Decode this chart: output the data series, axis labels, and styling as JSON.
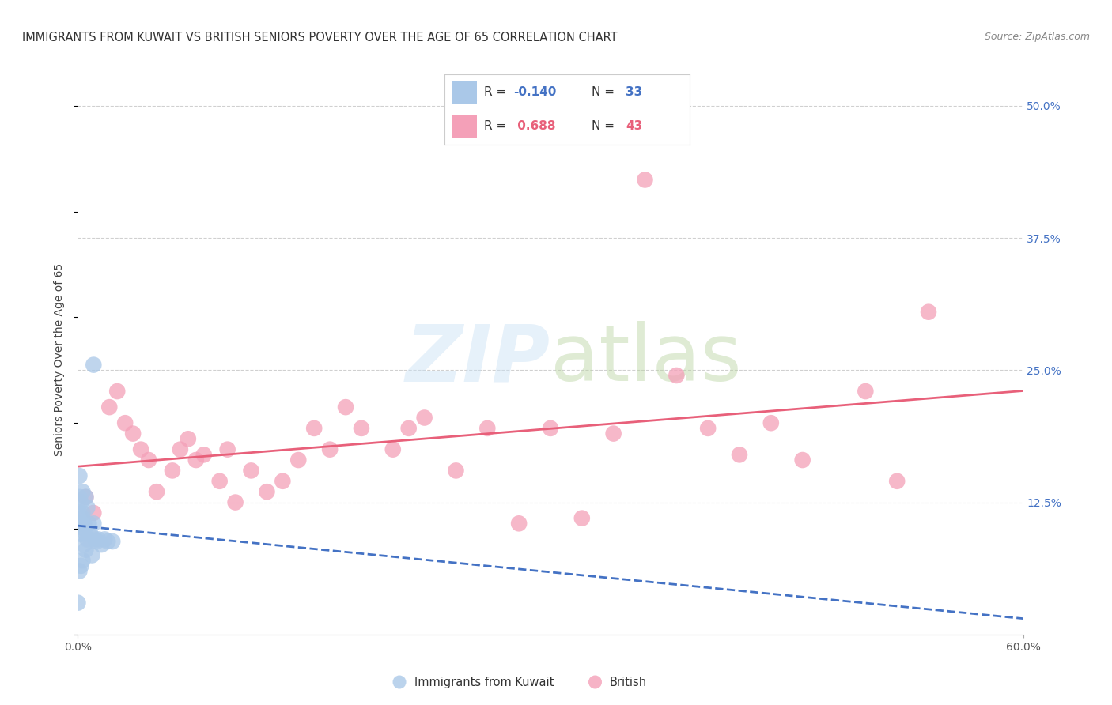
{
  "title": "IMMIGRANTS FROM KUWAIT VS BRITISH SENIORS POVERTY OVER THE AGE OF 65 CORRELATION CHART",
  "source": "Source: ZipAtlas.com",
  "ylabel": "Seniors Poverty Over the Age of 65",
  "xlim": [
    0.0,
    0.6
  ],
  "ylim": [
    0.0,
    0.52
  ],
  "ytick_positions": [
    0.0,
    0.125,
    0.25,
    0.375,
    0.5
  ],
  "yticklabels_right": [
    "",
    "12.5%",
    "25.0%",
    "37.5%",
    "50.0%"
  ],
  "grid_color": "#d0d0d0",
  "background_color": "#ffffff",
  "kuwait_color": "#aac8e8",
  "british_color": "#f4a0b8",
  "kuwait_line_color": "#4472c4",
  "british_line_color": "#e8607a",
  "kuwait_R": -0.14,
  "kuwait_N": 33,
  "british_R": 0.688,
  "british_N": 43,
  "kuwait_x": [
    0.0,
    0.001,
    0.001,
    0.002,
    0.002,
    0.003,
    0.003,
    0.004,
    0.004,
    0.005,
    0.005,
    0.006,
    0.007,
    0.008,
    0.009,
    0.01,
    0.011,
    0.012,
    0.013,
    0.015,
    0.017,
    0.019,
    0.022,
    0.001,
    0.002,
    0.003,
    0.004,
    0.005,
    0.006,
    0.001,
    0.002,
    0.003,
    0.01
  ],
  "kuwait_y": [
    0.03,
    0.15,
    0.13,
    0.125,
    0.105,
    0.135,
    0.11,
    0.105,
    0.085,
    0.13,
    0.08,
    0.12,
    0.105,
    0.095,
    0.075,
    0.105,
    0.09,
    0.088,
    0.09,
    0.085,
    0.09,
    0.088,
    0.088,
    0.115,
    0.095,
    0.115,
    0.1,
    0.095,
    0.09,
    0.06,
    0.065,
    0.07,
    0.255
  ],
  "british_x": [
    0.005,
    0.01,
    0.02,
    0.025,
    0.03,
    0.035,
    0.04,
    0.045,
    0.05,
    0.06,
    0.065,
    0.07,
    0.075,
    0.08,
    0.09,
    0.095,
    0.1,
    0.11,
    0.12,
    0.13,
    0.14,
    0.15,
    0.16,
    0.17,
    0.18,
    0.2,
    0.21,
    0.22,
    0.24,
    0.26,
    0.28,
    0.3,
    0.32,
    0.34,
    0.36,
    0.38,
    0.4,
    0.42,
    0.44,
    0.46,
    0.5,
    0.52,
    0.54
  ],
  "british_y": [
    0.13,
    0.115,
    0.215,
    0.23,
    0.2,
    0.19,
    0.175,
    0.165,
    0.135,
    0.155,
    0.175,
    0.185,
    0.165,
    0.17,
    0.145,
    0.175,
    0.125,
    0.155,
    0.135,
    0.145,
    0.165,
    0.195,
    0.175,
    0.215,
    0.195,
    0.175,
    0.195,
    0.205,
    0.155,
    0.195,
    0.105,
    0.195,
    0.11,
    0.19,
    0.43,
    0.245,
    0.195,
    0.17,
    0.2,
    0.165,
    0.23,
    0.145,
    0.305
  ],
  "title_fontsize": 10.5,
  "axis_label_fontsize": 10,
  "tick_fontsize": 10,
  "source_fontsize": 9
}
